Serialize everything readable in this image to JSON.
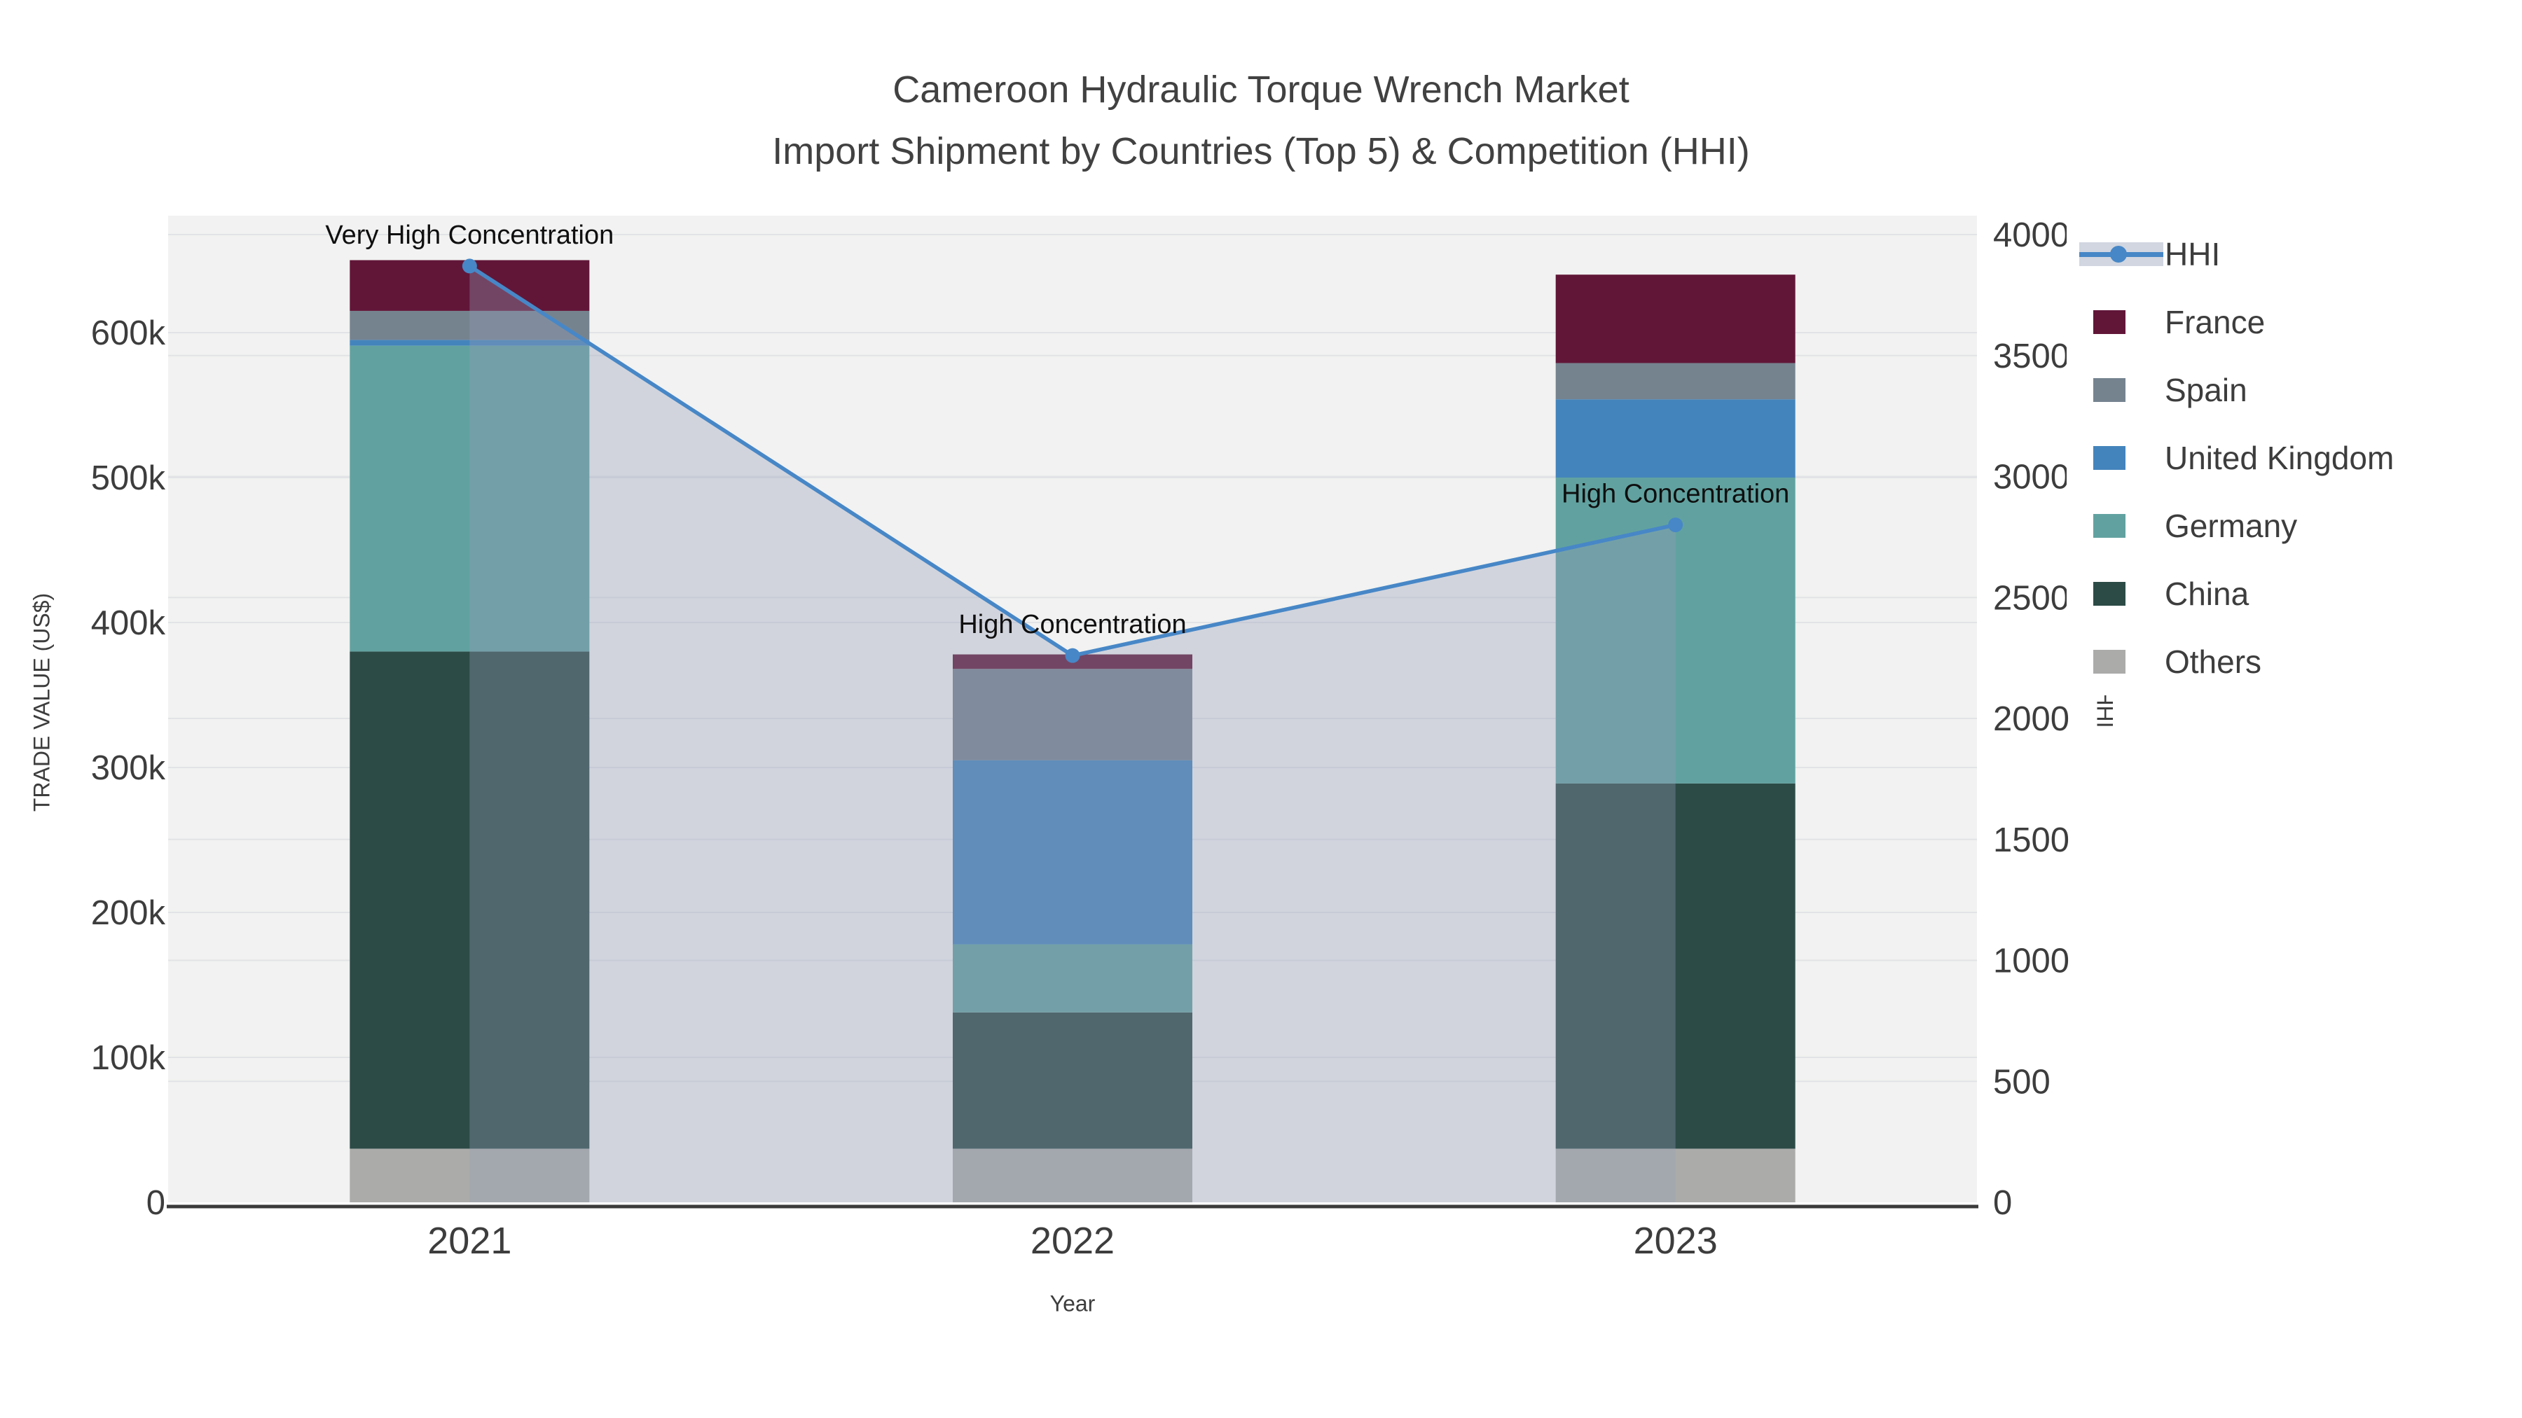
{
  "title": {
    "line1": "Cameroon Hydraulic Torque Wrench Market",
    "line2": "Import Shipment by Countries (Top 5) & Competition (HHI)"
  },
  "axes": {
    "x": {
      "title": "Year",
      "categories": [
        "2021",
        "2022",
        "2023"
      ]
    },
    "y_left": {
      "title": "TRADE VALUE (US$)",
      "tick_values": [
        0,
        100000,
        200000,
        300000,
        400000,
        500000,
        600000
      ],
      "tick_labels": [
        "0",
        "100k",
        "200k",
        "300k",
        "400k",
        "500k",
        "600k"
      ]
    },
    "y_right": {
      "title": "HHI",
      "tick_values": [
        0,
        500,
        1000,
        1500,
        2000,
        2500,
        3000,
        3500,
        4000
      ],
      "tick_labels": [
        "0",
        "500",
        "1000",
        "1500",
        "2000",
        "2500",
        "3000",
        "3500",
        "4000"
      ]
    }
  },
  "legend": {
    "items": [
      {
        "id": "hhi",
        "label": "HHI",
        "type": "line",
        "color": "#4787C7",
        "band_color": "#D1D6E0"
      },
      {
        "id": "france",
        "label": "France",
        "type": "swatch",
        "color": "#611638"
      },
      {
        "id": "spain",
        "label": "Spain",
        "type": "swatch",
        "color": "#75838F"
      },
      {
        "id": "united-kingdom",
        "label": "United Kingdom",
        "type": "swatch",
        "color": "#4484BC"
      },
      {
        "id": "germany",
        "label": "Germany",
        "type": "swatch",
        "color": "#61A2A0"
      },
      {
        "id": "china",
        "label": "China",
        "type": "swatch",
        "color": "#2C4B47"
      },
      {
        "id": "others",
        "label": "Others",
        "type": "swatch",
        "color": "#ABACAA"
      }
    ]
  },
  "annotations": [
    {
      "category_index": 0,
      "text": "Very High Concentration"
    },
    {
      "category_index": 1,
      "text": "High Concentration"
    },
    {
      "category_index": 2,
      "text": "High Concentration"
    }
  ],
  "chart_data": {
    "type": "bar",
    "subtype": "stacked-bars-with-line-overlay",
    "categories": [
      "2021",
      "2022",
      "2023"
    ],
    "bar_stack_order_bottom_to_top": [
      "Others",
      "China",
      "Germany",
      "United Kingdom",
      "Spain",
      "France"
    ],
    "series": [
      {
        "name": "Others",
        "type": "bar",
        "color": "#ABACAA",
        "values": [
          37000,
          37000,
          37000
        ]
      },
      {
        "name": "China",
        "type": "bar",
        "color": "#2C4B47",
        "values": [
          343000,
          94000,
          252000
        ]
      },
      {
        "name": "Germany",
        "type": "bar",
        "color": "#61A2A0",
        "values": [
          211000,
          47000,
          211000
        ]
      },
      {
        "name": "United Kingdom",
        "type": "bar",
        "color": "#4484BC",
        "values": [
          4000,
          127000,
          54000
        ]
      },
      {
        "name": "Spain",
        "type": "bar",
        "color": "#75838F",
        "values": [
          20000,
          63000,
          25000
        ]
      },
      {
        "name": "France",
        "type": "bar",
        "color": "#611638",
        "values": [
          35000,
          10000,
          61000
        ]
      }
    ],
    "bar_totals": [
      650000,
      378000,
      640000
    ],
    "line_series": {
      "name": "HHI",
      "axis": "right",
      "color": "#4787C7",
      "marker_color": "#4787C7",
      "area_fill": "rgba(148,158,184,0.35)",
      "values": [
        3870,
        2260,
        2800
      ]
    },
    "title": "Cameroon Hydraulic Torque Wrench Market — Import Shipment by Countries (Top 5) & Competition (HHI)",
    "xlabel": "Year",
    "ylabel_left": "TRADE VALUE (US$)",
    "ylabel_right": "HHI",
    "y_left_range": [
      0,
      682000
    ],
    "y_right_range": [
      0,
      4090
    ],
    "grid": true,
    "plot_bg": "#f1f2f1",
    "grid_color": "#e2e3e6",
    "legend_position": "right"
  }
}
